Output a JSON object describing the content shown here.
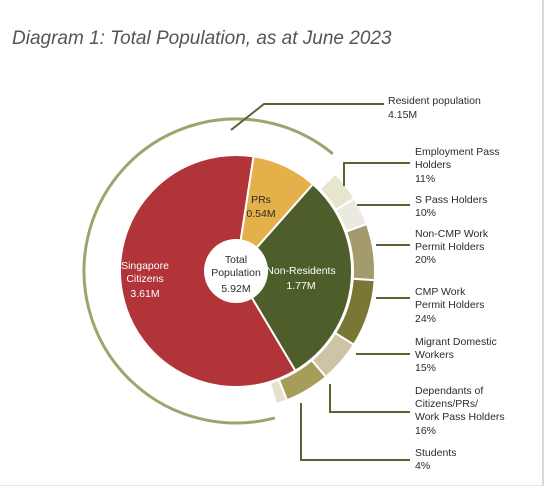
{
  "title": "Diagram 1: Total Population, as at June 2023",
  "colors": {
    "citizens": "#b13439",
    "prs": "#e3b04a",
    "non_residents": "#4e5e2a",
    "resident_ring": "#a4a26c",
    "leader": "#556631",
    "label_text": "#2b2b2b"
  },
  "chart_data": {
    "type": "pie",
    "title": "Diagram 1: Total Population, as at June 2023",
    "center": {
      "label": "Total Population",
      "value": "5.92M",
      "value_num": 5.92
    },
    "resident": {
      "name": "Resident population",
      "value": "4.15M",
      "value_num": 4.15
    },
    "slices": [
      {
        "name": "Singapore Citizens",
        "value": "3.61M",
        "value_num": 3.61,
        "color": "#b13439"
      },
      {
        "name": "PRs",
        "value": "0.54M",
        "value_num": 0.54,
        "color": "#e3b04a"
      },
      {
        "name": "Non-Residents",
        "value": "1.77M",
        "value_num": 1.77,
        "color": "#4e5e2a"
      }
    ],
    "non_resident_breakdown": [
      {
        "name": "Employment Pass Holders",
        "value": "11%",
        "pct": 11,
        "color": "#e8e5cd"
      },
      {
        "name": "S Pass Holders",
        "value": "10%",
        "pct": 10,
        "color": "#eceae0"
      },
      {
        "name": "Non-CMP Work Permit Holders",
        "value": "20%",
        "pct": 20,
        "color": "#a39a6d"
      },
      {
        "name": "CMP Work Permit Holders",
        "value": "24%",
        "pct": 24,
        "color": "#7a7734"
      },
      {
        "name": "Migrant Domestic Workers",
        "value": "15%",
        "pct": 15,
        "color": "#cdc4a6"
      },
      {
        "name": "Dependants of Citizens/PRs/ Work Pass Holders",
        "value": "16%",
        "pct": 16,
        "color": "#a79d5b"
      },
      {
        "name": "Students",
        "value": "4%",
        "pct": 4,
        "color": "#e5e1cf"
      }
    ]
  }
}
